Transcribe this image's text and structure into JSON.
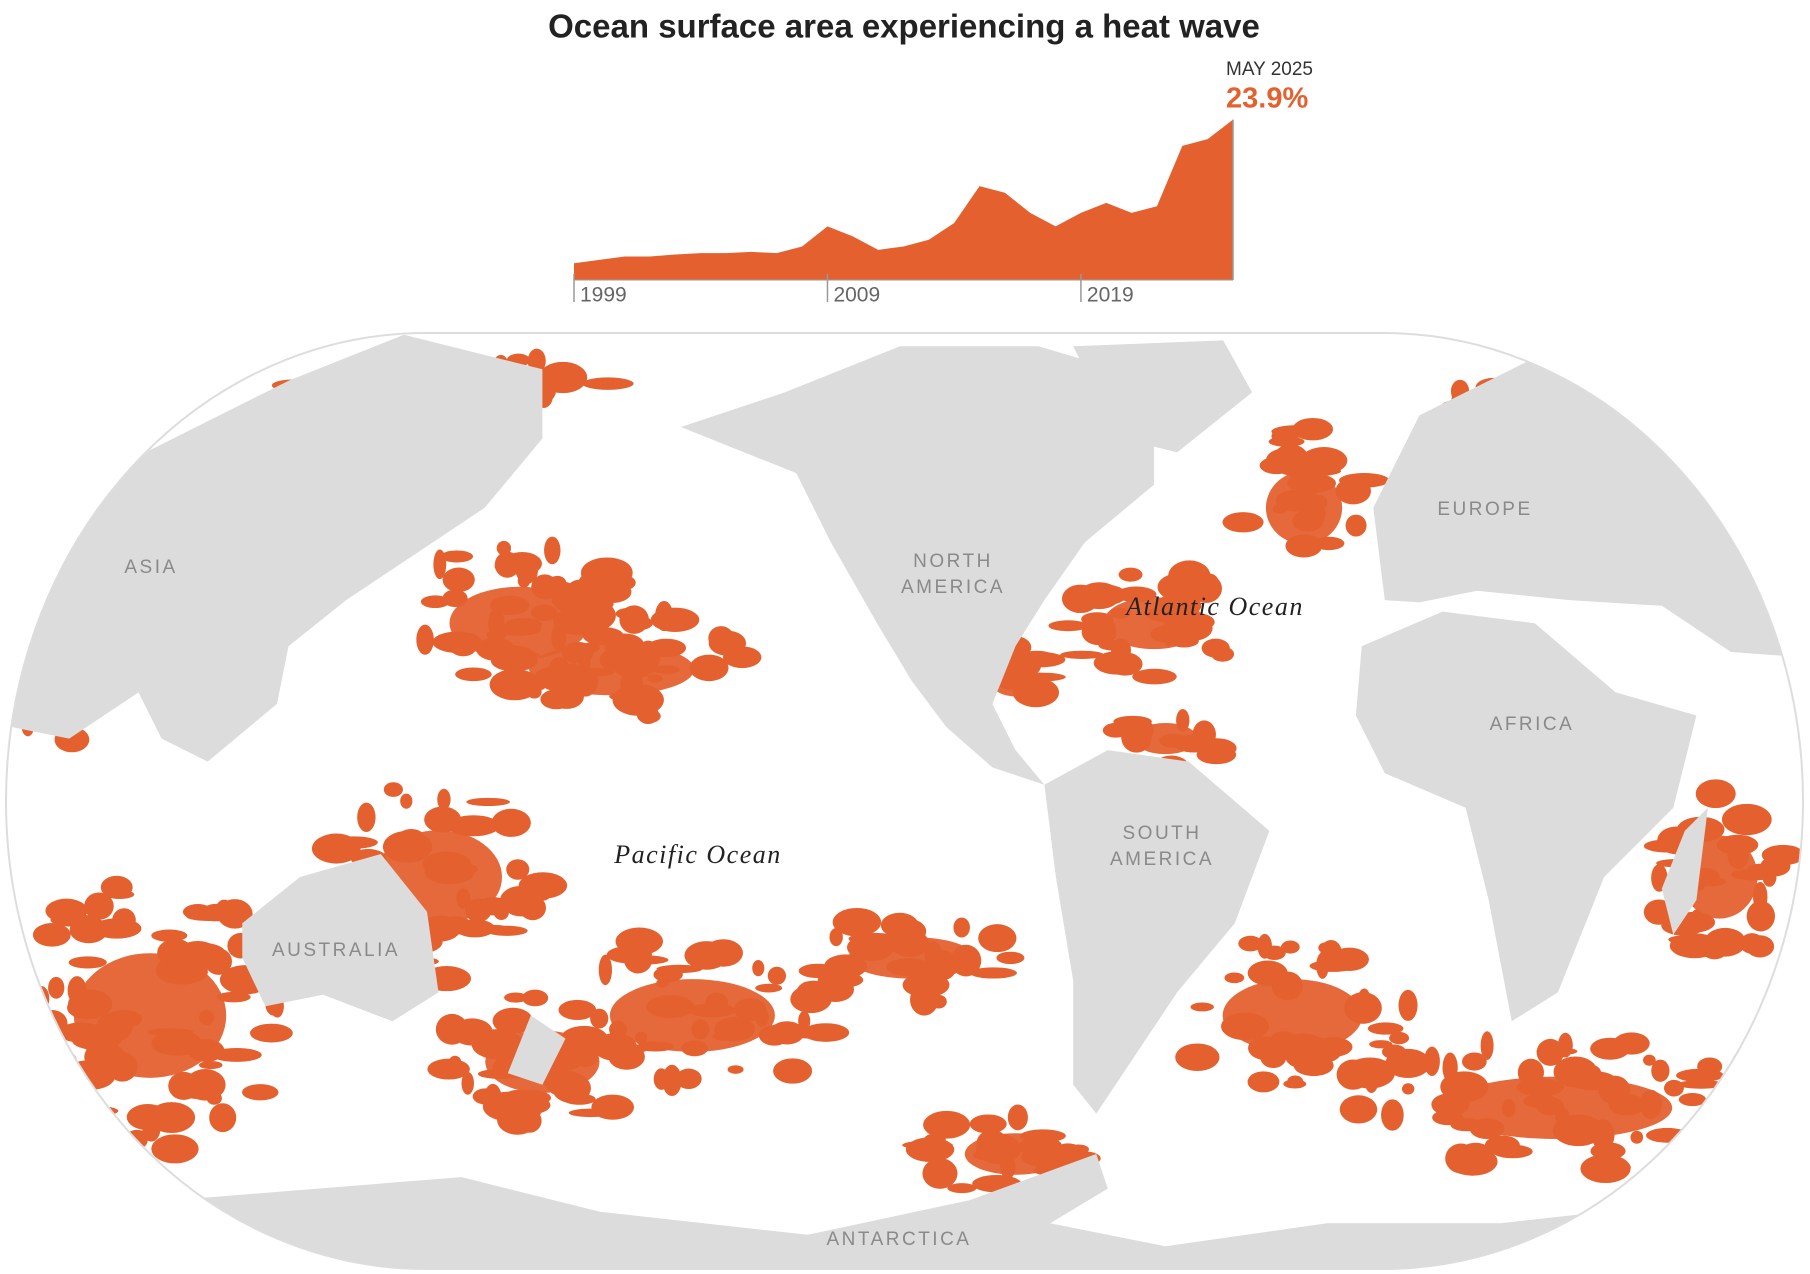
{
  "chart_data": {
    "type": "area",
    "title": "Ocean surface area experiencing a heat wave",
    "x": [
      1999,
      2000,
      2001,
      2002,
      2003,
      2004,
      2005,
      2006,
      2007,
      2008,
      2009,
      2010,
      2011,
      2012,
      2013,
      2014,
      2015,
      2016,
      2017,
      2018,
      2019,
      2020,
      2021,
      2022,
      2023,
      2024,
      2025
    ],
    "series": [
      {
        "color": "#e4612f",
        "values": [
          2.5,
          3,
          3.5,
          3.5,
          3.8,
          4,
          4,
          4.2,
          4,
          5,
          8,
          6.5,
          4.5,
          5,
          6,
          8.5,
          14,
          13,
          10,
          8,
          10,
          11.5,
          10,
          11,
          20,
          21,
          23.9
        ],
        "value_labels": [
          null,
          null,
          null,
          null,
          null,
          null,
          null,
          null,
          null,
          null,
          null,
          null,
          null,
          null,
          null,
          null,
          null,
          null,
          null,
          null,
          null,
          null,
          null,
          null,
          null,
          null,
          "23.9%"
        ]
      }
    ],
    "annotation": "MAY 2025",
    "xlim": [
      1999,
      2025
    ],
    "xticks": [
      1999,
      2009,
      2019
    ],
    "ylim": [
      0,
      24
    ]
  },
  "map_labels": [
    {
      "text": [
        "ASIA"
      ],
      "kind": "land"
    },
    {
      "text": [
        "NORTH",
        "AMERICA"
      ],
      "kind": "land"
    },
    {
      "text": [
        "Atlantic Ocean"
      ],
      "kind": "ocean"
    },
    {
      "text": [
        "EUROPE"
      ],
      "kind": "land"
    },
    {
      "text": [
        "AFRICA"
      ],
      "kind": "land"
    },
    {
      "text": [
        "SOUTH",
        "AMERICA"
      ],
      "kind": "land"
    },
    {
      "text": [
        "Pacific Ocean"
      ],
      "kind": "ocean"
    },
    {
      "text": [
        "AUSTRALIA"
      ],
      "kind": "land"
    },
    {
      "text": [
        "ANTARCTICA"
      ],
      "kind": "land"
    }
  ]
}
